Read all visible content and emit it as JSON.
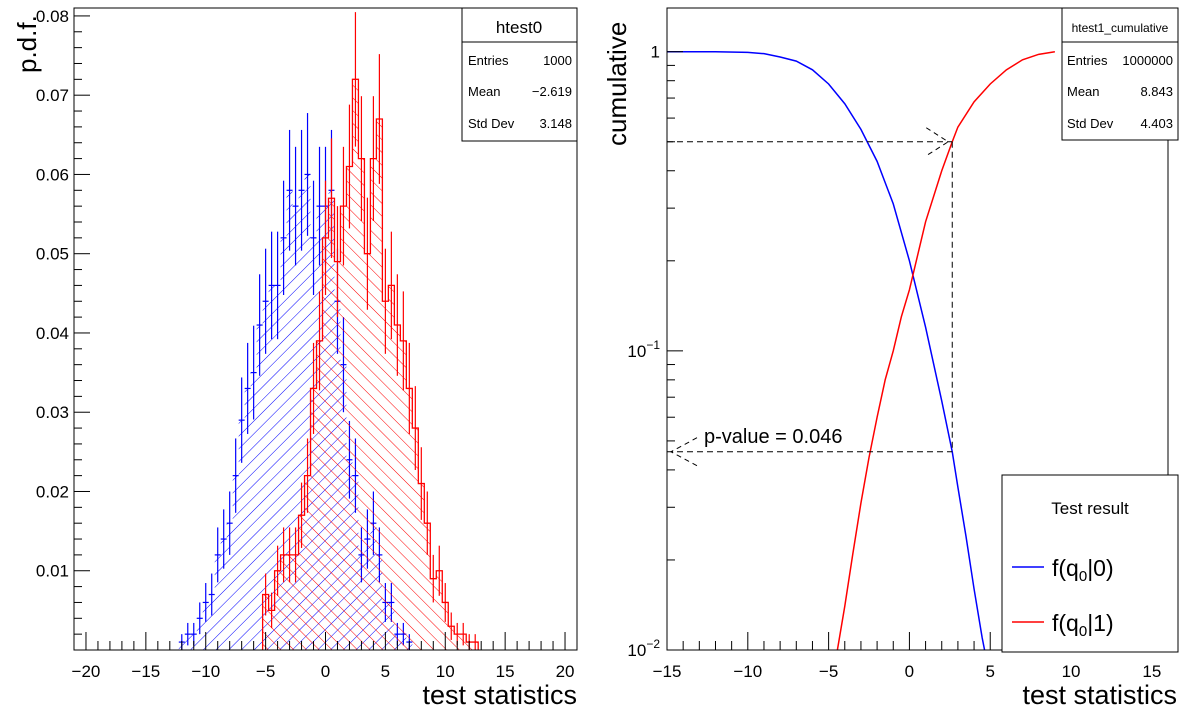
{
  "chart_data": [
    {
      "type": "histogram",
      "ylabel": "p.d.f.",
      "xlabel": "test statistics",
      "xlim": [
        -21,
        21
      ],
      "ylim": [
        0,
        0.081
      ],
      "xticks": [
        "−20",
        "−15",
        "−10",
        "−5",
        "0",
        "5",
        "10",
        "15",
        "20"
      ],
      "yticks": [
        "0.01",
        "0.02",
        "0.03",
        "0.04",
        "0.05",
        "0.06",
        "0.07",
        "0.08"
      ],
      "stats_box": {
        "title": "htest0",
        "rows": [
          {
            "label": "Entries",
            "value": "1000"
          },
          {
            "label": "Mean",
            "value": "−2.619"
          },
          {
            "label": "Std Dev",
            "value": "3.148"
          }
        ]
      },
      "series": [
        {
          "color": "#0000ff",
          "style": "hatched-errorbars",
          "x": [
            -12,
            -11.5,
            -11,
            -10.5,
            -10,
            -9.5,
            -9,
            -8.5,
            -8,
            -7.5,
            -7,
            -6.5,
            -6,
            -5.5,
            -5,
            -4.5,
            -4,
            -3.5,
            -3,
            -2.5,
            -2,
            -1.5,
            -1,
            -0.5,
            0,
            0.5,
            1,
            1.5,
            2,
            2.5,
            3,
            3.5,
            4,
            4.5,
            5,
            5.5,
            6,
            6.5,
            7
          ],
          "values": [
            0.001,
            0.002,
            0.002,
            0.004,
            0.006,
            0.007,
            0.012,
            0.014,
            0.016,
            0.022,
            0.029,
            0.033,
            0.035,
            0.041,
            0.044,
            0.046,
            0.046,
            0.052,
            0.058,
            0.056,
            0.058,
            0.06,
            0.052,
            0.056,
            0.056,
            0.058,
            0.044,
            0.036,
            0.024,
            0.022,
            0.012,
            0.014,
            0.016,
            0.012,
            0.006,
            0.006,
            0.002,
            0.002,
            0.001
          ]
        },
        {
          "color": "#ff0000",
          "style": "hatched-step",
          "x": [
            -5,
            -4.5,
            -4,
            -3.5,
            -3,
            -2.5,
            -2,
            -1.5,
            -1,
            -0.5,
            0,
            0.5,
            1,
            1.5,
            2,
            2.5,
            3,
            3.5,
            4,
            4.5,
            5,
            5.5,
            6,
            6.5,
            7,
            7.5,
            8,
            8.5,
            9,
            9.5,
            10,
            10.5,
            11,
            11.5,
            12,
            12.5
          ],
          "values": [
            0.007,
            0.005,
            0.01,
            0.012,
            0.012,
            0.012,
            0.017,
            0.022,
            0.033,
            0.039,
            0.052,
            0.057,
            0.049,
            0.056,
            0.061,
            0.072,
            0.062,
            0.05,
            0.062,
            0.067,
            0.044,
            0.046,
            0.041,
            0.039,
            0.033,
            0.028,
            0.021,
            0.016,
            0.009,
            0.01,
            0.006,
            0.003,
            0.002,
            0.002,
            0.001,
            0.001
          ]
        }
      ]
    },
    {
      "type": "line",
      "ylabel": "cumulative",
      "xlabel": "test statistics",
      "xlim": [
        -15,
        16
      ],
      "ylim": [
        0.01,
        1.4
      ],
      "yscale": "log",
      "xticks": [
        "−15",
        "−10",
        "−5",
        "0",
        "5",
        "10",
        "15"
      ],
      "yticks": [
        {
          "value": 1,
          "base": "1",
          "exp": ""
        },
        {
          "value": 0.1,
          "base": "10",
          "exp": "−1"
        },
        {
          "value": 0.01,
          "base": "10",
          "exp": "−2"
        }
      ],
      "stats_box": {
        "title": "htest1_cumulative",
        "rows": [
          {
            "label": "Entries",
            "value": "1000000"
          },
          {
            "label": "Mean",
            "value": "8.843"
          },
          {
            "label": "Std Dev",
            "value": "4.403"
          }
        ]
      },
      "annotation": {
        "text": "p-value = 0.046",
        "x_cut": 2.65,
        "y_pvalue": 0.046,
        "y_median": 0.5
      },
      "legend": {
        "title": "Test result",
        "position": "bottom-right",
        "entries": [
          {
            "label_main": "f(q",
            "label_sub": "0",
            "label_tail": "|0)",
            "color": "#0000ff"
          },
          {
            "label_main": "f(q",
            "label_sub": "0",
            "label_tail": "|1)",
            "color": "#ff0000"
          }
        ]
      },
      "series": [
        {
          "color": "#0000ff",
          "x": [
            -15,
            -12,
            -10,
            -9,
            -8,
            -7,
            -6,
            -5,
            -4,
            -3,
            -2,
            -1,
            0,
            1,
            2,
            2.65,
            3,
            3.5,
            4,
            4.5,
            5
          ],
          "values": [
            1.0,
            1.0,
            0.995,
            0.985,
            0.96,
            0.93,
            0.87,
            0.78,
            0.67,
            0.55,
            0.43,
            0.31,
            0.2,
            0.12,
            0.068,
            0.046,
            0.035,
            0.024,
            0.016,
            0.011,
            0.008
          ]
        },
        {
          "color": "#ff0000",
          "x": [
            -4.6,
            -4,
            -3.5,
            -3,
            -2.5,
            -2,
            -1.5,
            -1,
            -0.5,
            0,
            1,
            2,
            2.65,
            3,
            4,
            5,
            6,
            7,
            8,
            9
          ],
          "values": [
            0.009,
            0.014,
            0.021,
            0.031,
            0.044,
            0.06,
            0.08,
            0.1,
            0.13,
            0.16,
            0.27,
            0.4,
            0.5,
            0.56,
            0.68,
            0.78,
            0.87,
            0.94,
            0.98,
            1.0
          ]
        }
      ]
    }
  ]
}
